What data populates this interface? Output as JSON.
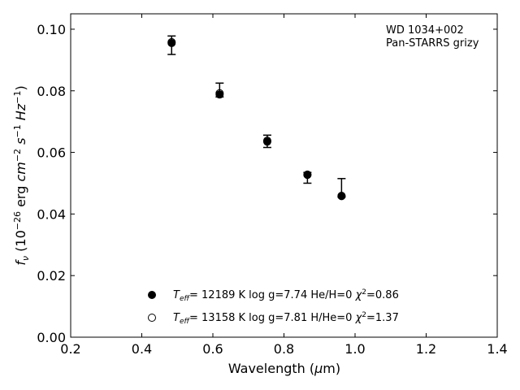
{
  "chart_data": {
    "type": "scatter",
    "xlabel": "Wavelength (μm)",
    "ylabel": "fν (10⁻²⁶ erg cm⁻² s⁻¹ Hz⁻¹)",
    "xlim": [
      0.2,
      1.4
    ],
    "ylim": [
      0.0,
      0.105
    ],
    "xticks": [
      "0.2",
      "0.4",
      "0.6",
      "0.8",
      "1.0",
      "1.2",
      "1.4"
    ],
    "yticks": [
      "0.00",
      "0.02",
      "0.04",
      "0.06",
      "0.08",
      "0.10"
    ],
    "grid": false,
    "annotation": [
      "WD 1034+002",
      "Pan-STARRS grizy"
    ],
    "observed": {
      "x": [
        0.484,
        0.619,
        0.753,
        0.866,
        0.962
      ],
      "y": [
        0.0948,
        0.08,
        0.0636,
        0.052,
        0.048
      ],
      "yerr_low": [
        0.003,
        0.002,
        0.002,
        0.002,
        0.0025
      ],
      "yerr_high": [
        0.003,
        0.0025,
        0.002,
        0.0015,
        0.0035
      ]
    },
    "series": [
      {
        "marker": "filled",
        "label": "T_eff= 12189 K  log g=7.74  He/H=0  χ²=0.86",
        "x": [
          0.484,
          0.619,
          0.753,
          0.866,
          0.962
        ],
        "y": [
          0.0955,
          0.0788,
          0.0635,
          0.0527,
          0.0458
        ]
      },
      {
        "marker": "open",
        "label": "T_eff= 13158 K  log g=7.81  H/He=0  χ²=1.37",
        "x": [
          0.484,
          0.619,
          0.753,
          0.866,
          0.962
        ],
        "y": [
          0.0958,
          0.0792,
          0.0638,
          0.0528,
          0.0459
        ]
      }
    ],
    "legend_placement": "lower-center",
    "annotation_placement": "top-right"
  }
}
